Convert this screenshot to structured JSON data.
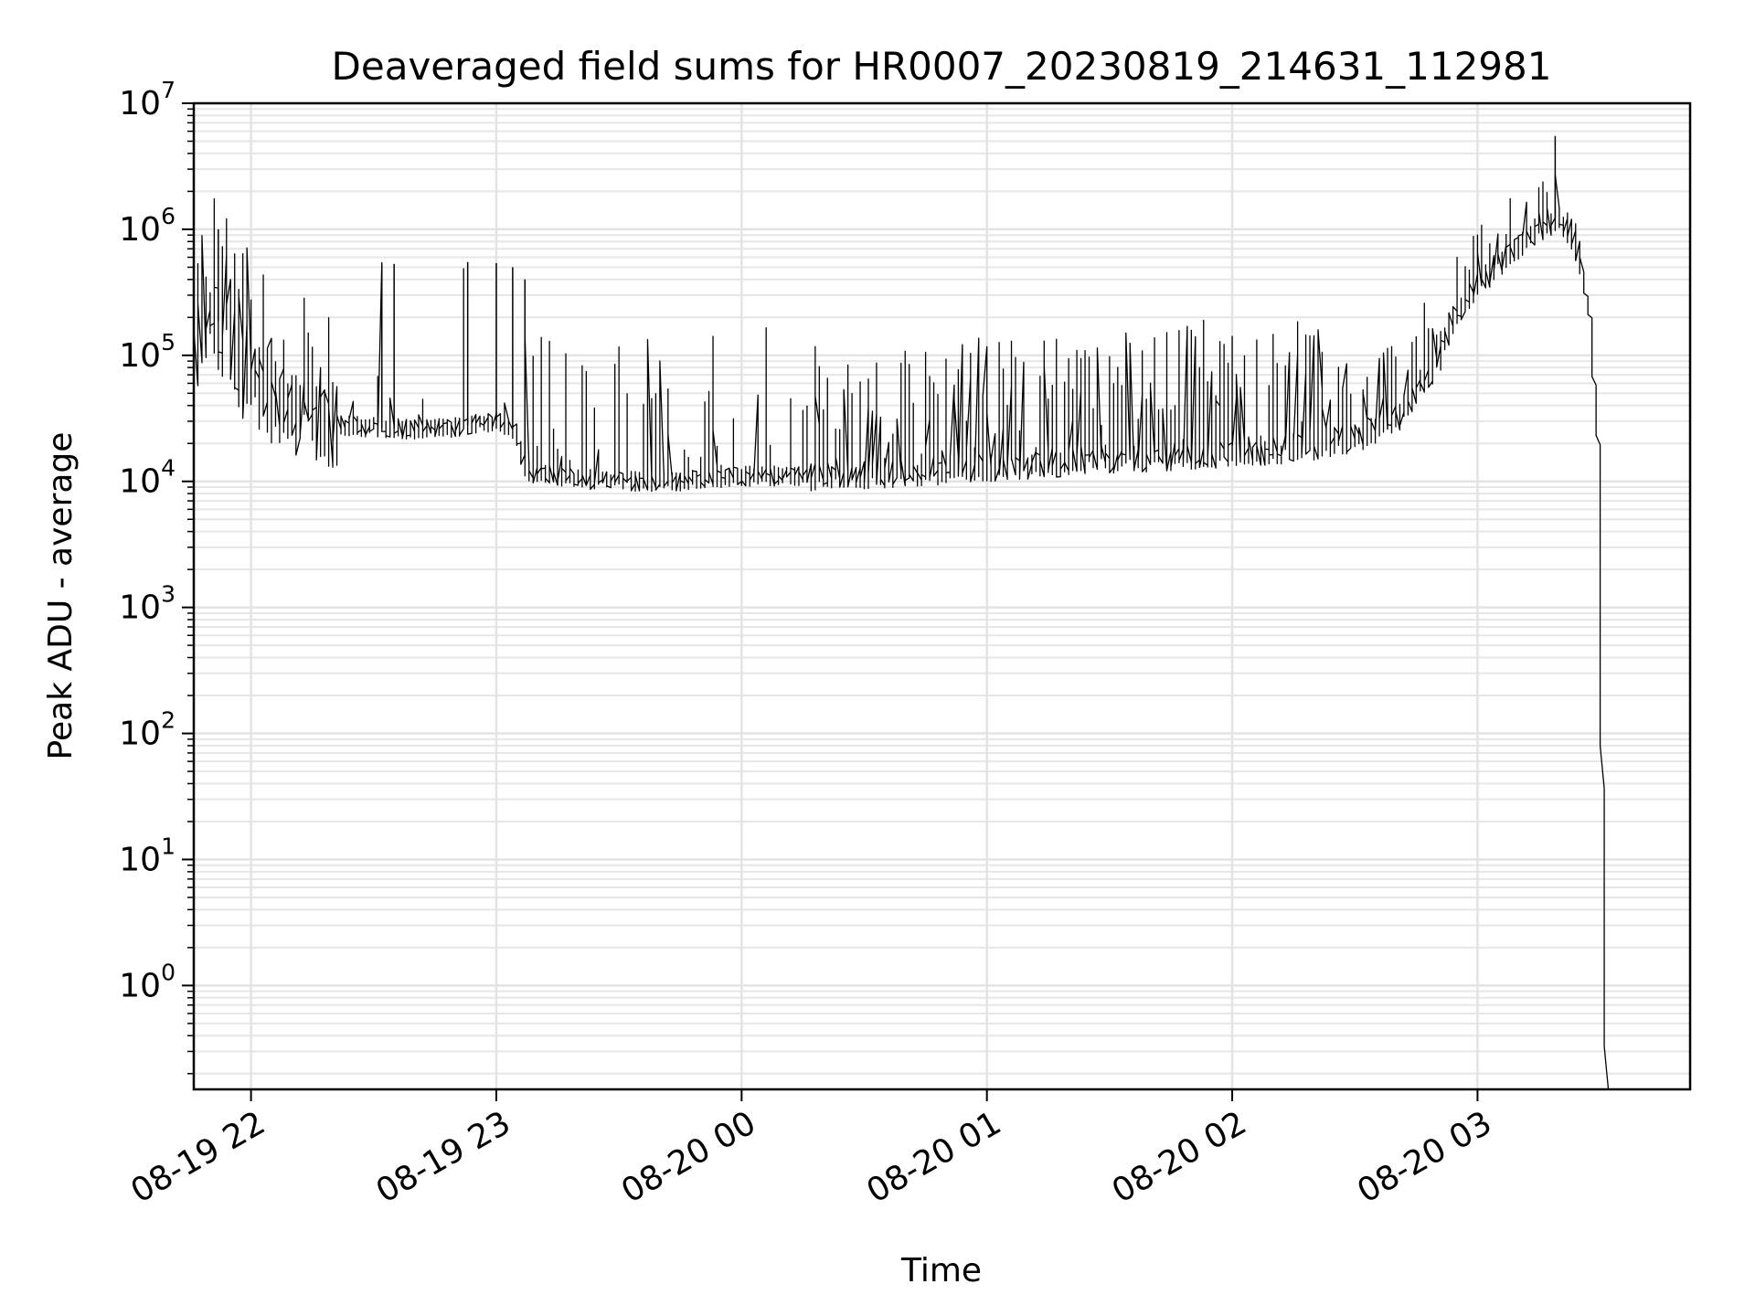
{
  "chart_data": {
    "type": "line",
    "title": "Deaveraged field sums for HR0007_20230819_214631_112981",
    "xlabel": "Time",
    "ylabel": "Peak ADU - average",
    "xlim": [
      "2023-08-19 21:46",
      "2023-08-20 03:52"
    ],
    "ylim": [
      0.15,
      10000000
    ],
    "yscale": "log",
    "grid": true,
    "line_color": "#000000",
    "x_ticks": [
      {
        "value": "2023-08-19 22:00",
        "label": "08-19 22"
      },
      {
        "value": "2023-08-19 23:00",
        "label": "08-19 23"
      },
      {
        "value": "2023-08-20 00:00",
        "label": "08-20 00"
      },
      {
        "value": "2023-08-20 01:00",
        "label": "08-20 01"
      },
      {
        "value": "2023-08-20 02:00",
        "label": "08-20 02"
      },
      {
        "value": "2023-08-20 03:00",
        "label": "08-20 03"
      }
    ],
    "y_ticks": [
      {
        "value": 1,
        "base": "10",
        "exp": "0"
      },
      {
        "value": 10,
        "base": "10",
        "exp": "1"
      },
      {
        "value": 100,
        "base": "10",
        "exp": "2"
      },
      {
        "value": 1000,
        "base": "10",
        "exp": "3"
      },
      {
        "value": 10000,
        "base": "10",
        "exp": "4"
      },
      {
        "value": 100000,
        "base": "10",
        "exp": "5"
      },
      {
        "value": 1000000,
        "base": "10",
        "exp": "6"
      },
      {
        "value": 10000000,
        "base": "10",
        "exp": "7"
      }
    ],
    "series": [
      {
        "values": [
          [
            "2023-08-19 21:46",
            90000
          ],
          [
            "2023-08-19 21:50",
            250000
          ],
          [
            "2023-08-19 21:55",
            120000
          ],
          [
            "2023-08-19 22:00",
            60000
          ],
          [
            "2023-08-19 22:05",
            45000
          ],
          [
            "2023-08-19 22:10",
            38000
          ],
          [
            "2023-08-19 22:15",
            32000
          ],
          [
            "2023-08-19 22:20",
            28000
          ],
          [
            "2023-08-19 22:30",
            27000
          ],
          [
            "2023-08-19 22:40",
            26000
          ],
          [
            "2023-08-19 22:50",
            27000
          ],
          [
            "2023-08-19 23:00",
            30000
          ],
          [
            "2023-08-19 23:05",
            25000
          ],
          [
            "2023-08-19 23:08",
            12000
          ],
          [
            "2023-08-19 23:15",
            11000
          ],
          [
            "2023-08-19 23:30",
            10000
          ],
          [
            "2023-08-19 23:45",
            10000
          ],
          [
            "2023-08-20 00:00",
            11000
          ],
          [
            "2023-08-20 00:15",
            11000
          ],
          [
            "2023-08-20 00:30",
            11500
          ],
          [
            "2023-08-20 00:45",
            12000
          ],
          [
            "2023-08-20 01:00",
            13000
          ],
          [
            "2023-08-20 01:15",
            14000
          ],
          [
            "2023-08-20 01:30",
            15000
          ],
          [
            "2023-08-20 01:45",
            16000
          ],
          [
            "2023-08-20 02:00",
            17000
          ],
          [
            "2023-08-20 02:15",
            18000
          ],
          [
            "2023-08-20 02:30",
            22000
          ],
          [
            "2023-08-20 02:40",
            30000
          ],
          [
            "2023-08-20 02:50",
            80000
          ],
          [
            "2023-08-20 02:55",
            200000
          ],
          [
            "2023-08-20 03:00",
            350000
          ],
          [
            "2023-08-20 03:05",
            500000
          ],
          [
            "2023-08-20 03:10",
            700000
          ],
          [
            "2023-08-20 03:15",
            1000000
          ],
          [
            "2023-08-20 03:20",
            1300000
          ],
          [
            "2023-08-20 03:22",
            1100000
          ],
          [
            "2023-08-20 03:25",
            700000
          ],
          [
            "2023-08-20 03:28",
            200000
          ],
          [
            "2023-08-20 03:30",
            20000
          ],
          [
            "2023-08-20 03:32",
            0.15
          ]
        ],
        "spikes": [
          [
            "2023-08-19 22:32",
            520000
          ],
          [
            "2023-08-19 22:35",
            530000
          ],
          [
            "2023-08-19 22:53",
            550000
          ],
          [
            "2023-08-19 23:00",
            540000
          ],
          [
            "2023-08-19 23:04",
            500000
          ],
          [
            "2023-08-19 23:07",
            400000
          ],
          [
            "2023-08-19 21:52",
            1000000
          ],
          [
            "2023-08-20 03:19",
            5500000
          ]
        ]
      }
    ]
  }
}
